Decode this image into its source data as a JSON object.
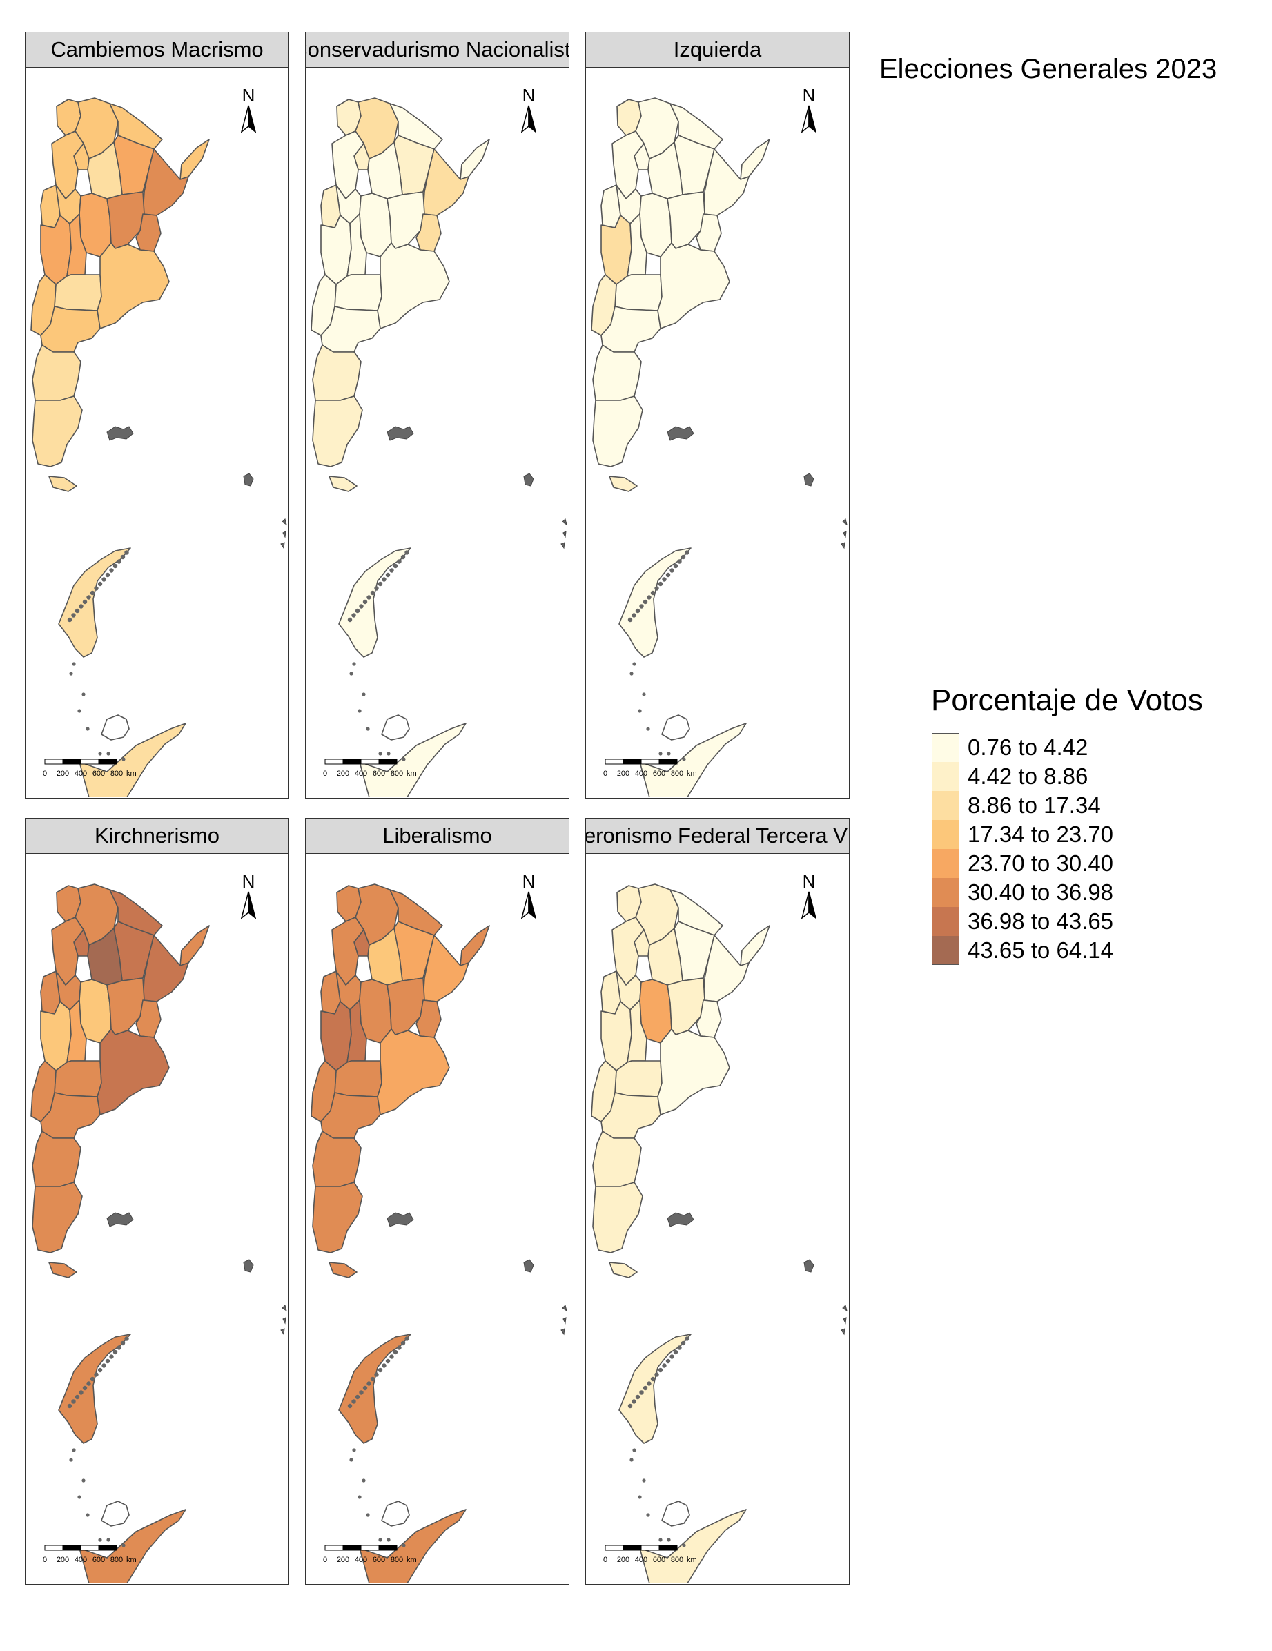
{
  "title": "Elecciones Generales 2023",
  "legend": {
    "title": "Porcentaje de Votos",
    "bins": [
      {
        "label": "0.76 to 4.42",
        "color": "#FFFCE6"
      },
      {
        "label": "4.42 to 8.86",
        "color": "#FEF1C9"
      },
      {
        "label": "8.86 to 17.34",
        "color": "#FDDEA1"
      },
      {
        "label": "17.34 to 23.70",
        "color": "#FCC77A"
      },
      {
        "label": "23.70 to 30.40",
        "color": "#F7A862"
      },
      {
        "label": "30.40 to 36.98",
        "color": "#E08C54"
      },
      {
        "label": "36.98 to 43.65",
        "color": "#C77650"
      },
      {
        "label": "43.65 to 64.14",
        "color": "#A46A52"
      }
    ]
  },
  "north_label": "N",
  "scale_bar": {
    "labels": [
      "0",
      "200",
      "400",
      "600",
      "800"
    ],
    "unit": "km"
  },
  "panels": [
    {
      "label": "Cambiemos Macrismo",
      "bins": {
        "jujuy": 3,
        "salta": 3,
        "formosa": 3,
        "chaco": 4,
        "misiones": 3,
        "corrientes": 5,
        "tucuman": 3,
        "santiago": 2,
        "catamarca": 3,
        "larioja": 3,
        "sanjuan": 3,
        "cordoba": 4,
        "santafe": 5,
        "entrerios": 5,
        "mendoza": 4,
        "sanluis": 4,
        "lapampa": 2,
        "buenosaires": 3,
        "neuquen": 3,
        "rionegro": 3,
        "chubut": 2,
        "santacruz": 2,
        "tierradelfuego": 2,
        "antartida": 2
      }
    },
    {
      "label": "Conservadurismo Nacionalista",
      "bins": {
        "jujuy": 1,
        "salta": 2,
        "formosa": 0,
        "chaco": 1,
        "misiones": 0,
        "corrientes": 2,
        "tucuman": 1,
        "santiago": 0,
        "catamarca": 0,
        "larioja": 0,
        "sanjuan": 1,
        "cordoba": 0,
        "santafe": 0,
        "entrerios": 2,
        "mendoza": 0,
        "sanluis": 0,
        "lapampa": 0,
        "buenosaires": 0,
        "neuquen": 0,
        "rionegro": 0,
        "chubut": 1,
        "santacruz": 1,
        "tierradelfuego": 1,
        "antartida": 0
      }
    },
    {
      "label": "Izquierda",
      "bins": {
        "jujuy": 1,
        "salta": 0,
        "formosa": 0,
        "chaco": 0,
        "misiones": 0,
        "corrientes": 0,
        "tucuman": 0,
        "santiago": 0,
        "catamarca": 0,
        "larioja": 0,
        "sanjuan": 0,
        "cordoba": 0,
        "santafe": 0,
        "entrerios": 0,
        "mendoza": 2,
        "sanluis": 0,
        "lapampa": 0,
        "buenosaires": 0,
        "neuquen": 1,
        "rionegro": 0,
        "chubut": 0,
        "santacruz": 0,
        "tierradelfuego": 1,
        "antartida": 0
      }
    },
    {
      "label": "Kirchnerismo",
      "bins": {
        "jujuy": 5,
        "salta": 5,
        "formosa": 6,
        "chaco": 6,
        "misiones": 5,
        "corrientes": 6,
        "tucuman": 6,
        "santiago": 7,
        "catamarca": 5,
        "larioja": 5,
        "sanjuan": 5,
        "cordoba": 3,
        "santafe": 5,
        "entrerios": 5,
        "mendoza": 3,
        "sanluis": 4,
        "lapampa": 5,
        "buenosaires": 6,
        "neuquen": 5,
        "rionegro": 5,
        "chubut": 5,
        "santacruz": 5,
        "tierradelfuego": 5,
        "antartida": 5
      }
    },
    {
      "label": "Liberalismo",
      "bins": {
        "jujuy": 5,
        "salta": 5,
        "formosa": 5,
        "chaco": 4,
        "misiones": 5,
        "corrientes": 4,
        "tucuman": 6,
        "santiago": 3,
        "catamarca": 5,
        "larioja": 5,
        "sanjuan": 5,
        "cordoba": 5,
        "santafe": 5,
        "entrerios": 5,
        "mendoza": 6,
        "sanluis": 6,
        "lapampa": 5,
        "buenosaires": 4,
        "neuquen": 5,
        "rionegro": 5,
        "chubut": 5,
        "santacruz": 5,
        "tierradelfuego": 5,
        "antartida": 5
      }
    },
    {
      "label": "Peronismo Federal Tercera Vía",
      "bins": {
        "jujuy": 1,
        "salta": 1,
        "formosa": 0,
        "chaco": 0,
        "misiones": 0,
        "corrientes": 0,
        "tucuman": 1,
        "santiago": 1,
        "catamarca": 1,
        "larioja": 1,
        "sanjuan": 1,
        "cordoba": 4,
        "santafe": 1,
        "entrerios": 0,
        "mendoza": 1,
        "sanluis": 1,
        "lapampa": 1,
        "buenosaires": 0,
        "neuquen": 1,
        "rionegro": 1,
        "chubut": 1,
        "santacruz": 1,
        "tierradelfuego": 1,
        "antartida": 1
      }
    }
  ]
}
